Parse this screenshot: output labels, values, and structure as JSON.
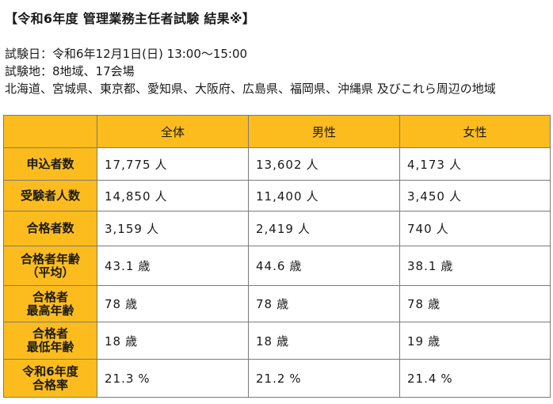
{
  "title": "【令和6年度 管理業務主任者試験 結果※】",
  "info": {
    "exam_date": "試験日：令和6年12月1日(日) 13:00～15:00",
    "exam_sites": "試験地：8地域、17会場",
    "regions": "北海道、宮城県、東京都、愛知県、大阪府、広島県、福岡県、沖縄県 及びこれら周辺の地域"
  },
  "table": {
    "headers": [
      "全体",
      "男性",
      "女性"
    ],
    "rows": [
      {
        "label": [
          "申込者数"
        ],
        "cells": [
          {
            "v": "17,775",
            "u": "人"
          },
          {
            "v": "13,602",
            "u": "人"
          },
          {
            "v": "4,173",
            "u": "人"
          }
        ]
      },
      {
        "label": [
          "受験者人数"
        ],
        "cells": [
          {
            "v": "14,850",
            "u": "人"
          },
          {
            "v": "11,400",
            "u": "人"
          },
          {
            "v": "3,450",
            "u": "人"
          }
        ]
      },
      {
        "label": [
          "合格者数"
        ],
        "cells": [
          {
            "v": "3,159",
            "u": "人"
          },
          {
            "v": "2,419",
            "u": "人"
          },
          {
            "v": "740",
            "u": "人"
          }
        ]
      },
      {
        "label": [
          "合格者年齢",
          "（平均）"
        ],
        "cells": [
          {
            "v": "43.1",
            "u": "歳"
          },
          {
            "v": "44.6",
            "u": "歳"
          },
          {
            "v": "38.1",
            "u": "歳"
          }
        ]
      },
      {
        "label": [
          "合格者",
          "最高年齢"
        ],
        "cells": [
          {
            "v": "78",
            "u": "歳"
          },
          {
            "v": "78",
            "u": "歳"
          },
          {
            "v": "78",
            "u": "歳"
          }
        ]
      },
      {
        "label": [
          "合格者",
          "最低年齢"
        ],
        "cells": [
          {
            "v": "18",
            "u": "歳"
          },
          {
            "v": "18",
            "u": "歳"
          },
          {
            "v": "19",
            "u": "歳"
          }
        ]
      },
      {
        "label": [
          "令和6年度",
          "合格率"
        ],
        "cells": [
          {
            "v": "21.3",
            "u": "%"
          },
          {
            "v": "21.2",
            "u": "%"
          },
          {
            "v": "21.4",
            "u": "%"
          }
        ]
      }
    ]
  },
  "colors": {
    "header_fill": "#fcbc1e",
    "border": "#7a7a7a"
  }
}
